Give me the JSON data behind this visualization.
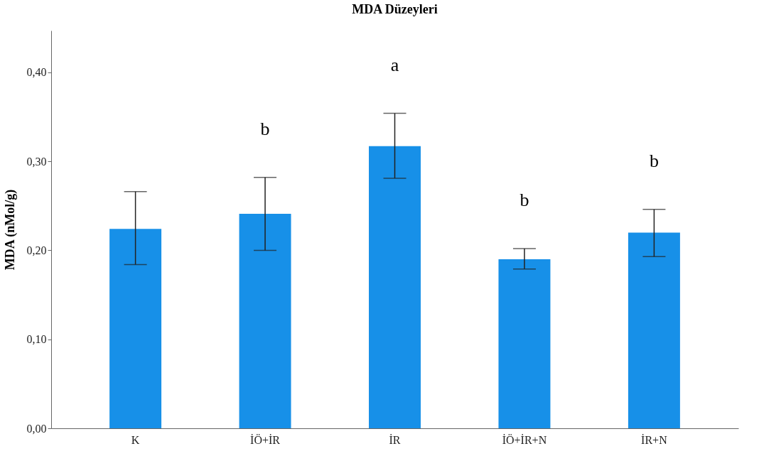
{
  "chart_data": {
    "type": "bar",
    "title": "MDA Düzeyleri",
    "ylabel": "MDA (nMol/g)",
    "categories": [
      "K",
      "İÖ+İR",
      "İR",
      "İÖ+İR+N",
      "İR+N"
    ],
    "values": [
      0.224,
      0.241,
      0.317,
      0.19,
      0.22
    ],
    "color": "#1790e8",
    "errors": [
      [
        0.184,
        0.266
      ],
      [
        0.2,
        0.282
      ],
      [
        0.281,
        0.354
      ],
      [
        0.179,
        0.202
      ],
      [
        0.193,
        0.246
      ]
    ],
    "ylim": [
      0,
      0.447
    ],
    "yticks": [
      {
        "value": 0,
        "label": "0,00"
      },
      {
        "value": 0.1,
        "label": "0,10"
      },
      {
        "value": 0.2,
        "label": "0,20"
      },
      {
        "value": 0.3,
        "label": "0,30"
      },
      {
        "value": 0.4,
        "label": "0,40"
      }
    ],
    "grid": false,
    "annotations": [
      "b",
      "a",
      "b",
      "b"
    ]
  }
}
